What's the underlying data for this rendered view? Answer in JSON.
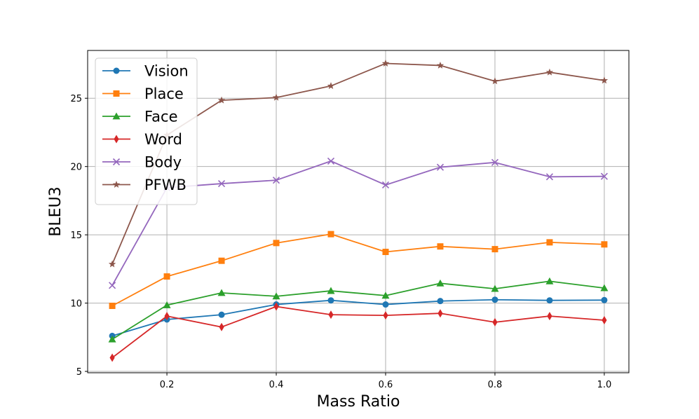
{
  "chart_data": {
    "type": "line",
    "title": "",
    "xlabel": "Mass Ratio",
    "ylabel": "BLEU3",
    "x": [
      0.1,
      0.2,
      0.3,
      0.4,
      0.5,
      0.6,
      0.7,
      0.8,
      0.9,
      1.0
    ],
    "xlim": [
      0.055,
      1.045
    ],
    "ylim": [
      4.9,
      28.5
    ],
    "xticks": [
      0.2,
      0.4,
      0.6,
      0.8,
      1.0
    ],
    "xtick_labels": [
      "0.2",
      "0.4",
      "0.6",
      "0.8",
      "1.0"
    ],
    "yticks": [
      5,
      10,
      15,
      20,
      25
    ],
    "ytick_labels": [
      "5",
      "10",
      "15",
      "20",
      "25"
    ],
    "grid": true,
    "legend_position": "top-left",
    "series": [
      {
        "name": "Vision",
        "color": "#1f77b4",
        "marker": "circle",
        "values": [
          7.6,
          8.8,
          9.15,
          9.9,
          10.2,
          9.9,
          10.15,
          10.25,
          10.2,
          10.22
        ]
      },
      {
        "name": "Place",
        "color": "#ff7f0e",
        "marker": "square",
        "values": [
          9.8,
          11.95,
          13.1,
          14.4,
          15.05,
          13.75,
          14.15,
          13.95,
          14.45,
          14.3
        ]
      },
      {
        "name": "Face",
        "color": "#2ca02c",
        "marker": "triangle",
        "values": [
          7.35,
          9.85,
          10.75,
          10.5,
          10.9,
          10.55,
          11.45,
          11.05,
          11.6,
          11.1
        ]
      },
      {
        "name": "Word",
        "color": "#d62728",
        "marker": "diamond",
        "values": [
          6.0,
          9.05,
          8.25,
          9.75,
          9.15,
          9.1,
          9.25,
          8.6,
          9.05,
          8.75
        ]
      },
      {
        "name": "Body",
        "color": "#9467bd",
        "marker": "x",
        "values": [
          11.3,
          18.45,
          18.75,
          19.0,
          20.4,
          18.65,
          19.95,
          20.3,
          19.25,
          19.28
        ]
      },
      {
        "name": "PFWB",
        "color": "#8c564b",
        "marker": "star",
        "values": [
          12.85,
          22.3,
          24.85,
          25.05,
          25.9,
          27.55,
          27.4,
          26.25,
          26.9,
          26.3
        ]
      }
    ]
  }
}
